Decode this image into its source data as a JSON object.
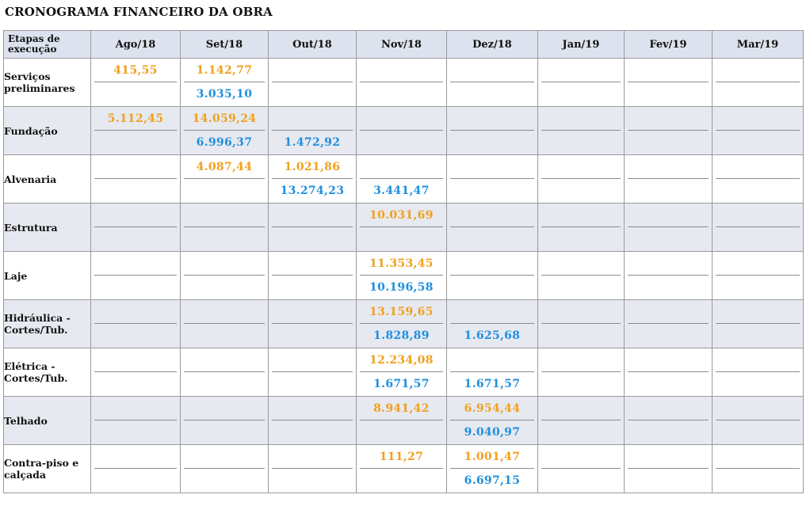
{
  "title": "CRONOGRAMA FINANCEIRO DA OBRA",
  "colors": {
    "planned": "#f2a01a",
    "executed": "#1d8fe0",
    "header_bg": "#dde3ee",
    "shaded_row": "#e6e9f0"
  },
  "table": {
    "stage_header": "Etapas de execução",
    "months": [
      "Ago/18",
      "Set/18",
      "Out/18",
      "Nov/18",
      "Dez/18",
      "Jan/19",
      "Fev/19",
      "Mar/19"
    ],
    "rows": [
      {
        "stage": "Serviços preliminares",
        "planned": [
          "415,55",
          "1.142,77",
          "",
          "",
          "",
          "",
          "",
          ""
        ],
        "executed": [
          "",
          "3.035,10",
          "",
          "",
          "",
          "",
          "",
          ""
        ]
      },
      {
        "stage": "Fundação",
        "planned": [
          "5.112,45",
          "14.059,24",
          "",
          "",
          "",
          "",
          "",
          ""
        ],
        "executed": [
          "",
          "6.996,37",
          "1.472,92",
          "",
          "",
          "",
          "",
          ""
        ]
      },
      {
        "stage": "Alvenaria",
        "planned": [
          "",
          "4.087,44",
          "1.021,86",
          "",
          "",
          "",
          "",
          ""
        ],
        "executed": [
          "",
          "",
          "13.274,23",
          "3.441,47",
          "",
          "",
          "",
          ""
        ]
      },
      {
        "stage": "Estrutura",
        "planned": [
          "",
          "",
          "",
          "10.031,69",
          "",
          "",
          "",
          ""
        ],
        "executed": [
          "",
          "",
          "",
          "",
          "",
          "",
          "",
          ""
        ]
      },
      {
        "stage": "Laje",
        "planned": [
          "",
          "",
          "",
          "11.353,45",
          "",
          "",
          "",
          ""
        ],
        "executed": [
          "",
          "",
          "",
          "10.196,58",
          "",
          "",
          "",
          ""
        ]
      },
      {
        "stage": "Hidráulica - Cortes/Tub.",
        "planned": [
          "",
          "",
          "",
          "13.159,65",
          "",
          "",
          "",
          ""
        ],
        "executed": [
          "",
          "",
          "",
          "1.828,89",
          "1.625,68",
          "",
          "",
          ""
        ]
      },
      {
        "stage": "Elétrica - Cortes/Tub.",
        "planned": [
          "",
          "",
          "",
          "12.234,08",
          "",
          "",
          "",
          ""
        ],
        "executed": [
          "",
          "",
          "",
          "1.671,57",
          "1.671,57",
          "",
          "",
          ""
        ]
      },
      {
        "stage": "Telhado",
        "planned": [
          "",
          "",
          "",
          "8.941,42",
          "6.954,44",
          "",
          "",
          ""
        ],
        "executed": [
          "",
          "",
          "",
          "",
          "9.040,97",
          "",
          "",
          ""
        ]
      },
      {
        "stage": "Contra-piso e calçada",
        "planned": [
          "",
          "",
          "",
          "111,27",
          "1.001,47",
          "",
          "",
          ""
        ],
        "executed": [
          "",
          "",
          "",
          "",
          "6.697,15",
          "",
          "",
          ""
        ]
      }
    ]
  }
}
